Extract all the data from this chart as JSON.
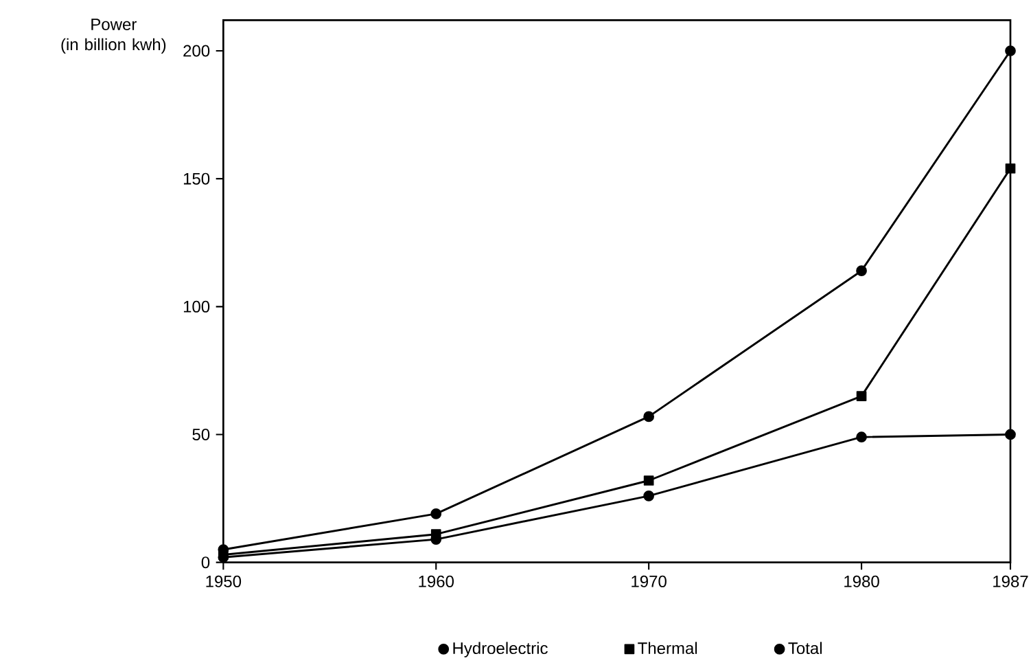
{
  "chart_data": {
    "type": "line",
    "ylabel": "Power\n(in billion kwh)",
    "x": [
      1950,
      1960,
      1970,
      1980,
      1987
    ],
    "series": [
      {
        "name": "Hydroelectric",
        "color": "#000000",
        "marker": "circle",
        "values": [
          2,
          9,
          26,
          49,
          50
        ]
      },
      {
        "name": "Thermal",
        "color": "#000000",
        "marker": "square",
        "values": [
          3,
          11,
          32,
          65,
          154
        ]
      },
      {
        "name": "Total",
        "color": "#000000",
        "marker": "circle",
        "values": [
          5,
          19,
          57,
          114,
          200
        ]
      }
    ],
    "xlim": [
      1950,
      1987
    ],
    "ylim": [
      0,
      212
    ],
    "xticks": [
      1950,
      1960,
      1970,
      1980,
      1987
    ],
    "yticks": [
      0,
      50,
      100,
      150,
      200
    ],
    "grid": false,
    "legend": "bottom",
    "line_style": "solid"
  }
}
